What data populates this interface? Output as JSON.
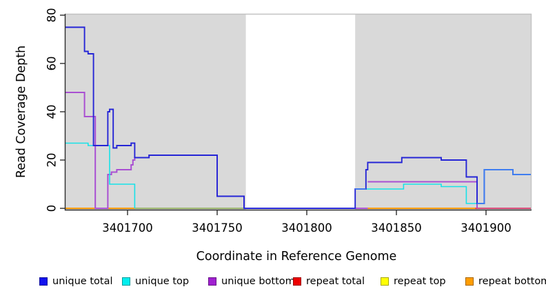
{
  "chart_data": {
    "type": "line",
    "subtype": "step-coverage-plot",
    "title": "",
    "xlabel": "Coordinate in Reference Genome",
    "ylabel": "Read Coverage Depth",
    "xlim": [
      3401665,
      3401925
    ],
    "ylim": [
      0,
      80
    ],
    "x_ticks": [
      3401700,
      3401750,
      3401800,
      3401850,
      3401900
    ],
    "y_ticks": [
      0,
      20,
      40,
      60,
      80
    ],
    "y_tick_labels_rotated": true,
    "grid": false,
    "plot_bg_color": "#d9d9d9",
    "plot_border_color": "#c2c2c2",
    "axis_color": "#2b2b2b",
    "white_region": {
      "x0": 3401766,
      "x1": 3401827,
      "color": "#ffffff"
    },
    "series": [
      {
        "name": "repeat-top",
        "label": "repeat top",
        "color": "#ffff00",
        "width": 1.6,
        "paths": [
          {
            "points": [
              [
                3401665,
                0
              ]
            ],
            "end": 3401894
          }
        ]
      },
      {
        "name": "repeat-total",
        "label": "repeat total",
        "color": "#ee0000",
        "width": 1.6,
        "paths": [
          {
            "points": [
              [
                3401665,
                0
              ]
            ],
            "end": 3401925
          }
        ]
      },
      {
        "name": "repeat-bottom",
        "label": "repeat bottom",
        "color": "#ff9d00",
        "width": 1.8,
        "paths": [
          {
            "points": [
              [
                3401665,
                0
              ]
            ],
            "end": 3401704
          },
          {
            "points": [
              [
                3401834,
                0
              ]
            ],
            "end": 3401894
          }
        ]
      },
      {
        "name": "zero-overlap-green",
        "label": "",
        "color": "#7ec87e",
        "width": 1.5,
        "note": "greenish zero line visible between unique and repeat segments",
        "paths": [
          {
            "points": [
              [
                3401704,
                0
              ]
            ],
            "end": 3401766
          }
        ]
      },
      {
        "name": "unique-bottom",
        "label": "unique bottom",
        "color": "#a94fd2",
        "width": 2.0,
        "paths": [
          {
            "points": [
              [
                3401665,
                48
              ],
              [
                3401676,
                38
              ],
              [
                3401682,
                0
              ],
              [
                3401689,
                14
              ],
              [
                3401691,
                15
              ],
              [
                3401694,
                16
              ],
              [
                3401702,
                18
              ],
              [
                3401703,
                20
              ],
              [
                3401704,
                21
              ],
              [
                3401712,
                22
              ],
              [
                3401750,
                5
              ],
              [
                3401765,
                0
              ]
            ],
            "end": 3401834
          },
          {
            "points": [
              [
                3401834,
                11
              ],
              [
                3401895,
                0
              ]
            ],
            "end": 3401895
          }
        ]
      },
      {
        "name": "unique-top",
        "label": "unique top",
        "color": "#17e2e8",
        "width": 1.6,
        "paths": [
          {
            "points": [
              [
                3401665,
                27
              ],
              [
                3401678,
                26
              ],
              [
                3401690,
                10
              ],
              [
                3401704,
                0
              ]
            ],
            "end": 3401704
          },
          {
            "points": [
              [
                3401827,
                8
              ],
              [
                3401854,
                10
              ],
              [
                3401875,
                9
              ],
              [
                3401889,
                2
              ],
              [
                3401899,
                16
              ],
              [
                3401915,
                14
              ]
            ],
            "end": 3401925
          }
        ]
      },
      {
        "name": "zero-overlap-rose",
        "label": "",
        "color": "#d23c78",
        "width": 1.6,
        "note": "rose zero line at right edge (repeat total / unique bottom overlap)",
        "paths": [
          {
            "points": [
              [
                3401895,
                0
              ]
            ],
            "end": 3401925
          }
        ]
      },
      {
        "name": "unique-total",
        "label": "unique total",
        "color": "#2525d6",
        "width": 1.9,
        "paths": [
          {
            "points": [
              [
                3401665,
                75
              ],
              [
                3401676,
                65
              ],
              [
                3401678,
                64
              ],
              [
                3401681,
                26
              ],
              [
                3401689,
                40
              ],
              [
                3401690,
                41
              ],
              [
                3401692,
                25
              ],
              [
                3401694,
                26
              ],
              [
                3401702,
                27
              ],
              [
                3401704,
                21
              ],
              [
                3401712,
                22
              ],
              [
                3401750,
                5
              ],
              [
                3401765,
                0
              ],
              [
                3401827,
                8
              ],
              [
                3401833,
                16
              ],
              [
                3401834,
                19
              ],
              [
                3401853,
                21
              ],
              [
                3401875,
                20
              ],
              [
                3401889,
                13
              ],
              [
                3401895,
                2
              ],
              [
                3401899,
                16
              ],
              [
                3401915,
                14
              ]
            ],
            "end": 3401925
          }
        ]
      },
      {
        "name": "unique-total-light-overlay",
        "label": "",
        "color": "#3f7df0",
        "width": 1.9,
        "note": "lighter blue appearance where unique total overlaps unique top",
        "paths": [
          {
            "points": [
              [
                3401827,
                8
              ]
            ],
            "end": 3401833
          },
          {
            "points": [
              [
                3401895,
                2
              ],
              [
                3401899,
                16
              ],
              [
                3401915,
                14
              ]
            ],
            "end": 3401925
          }
        ]
      }
    ],
    "legend": {
      "position": "bottom",
      "items": [
        {
          "label": "unique total",
          "color": "#1111ee"
        },
        {
          "label": "unique top",
          "color": "#00eeee"
        },
        {
          "label": "unique bottom",
          "color": "#a020d0"
        },
        {
          "label": "repeat total",
          "color": "#ee0000"
        },
        {
          "label": "repeat top",
          "color": "#ffff00"
        },
        {
          "label": "repeat bottom",
          "color": "#ff9d00"
        }
      ]
    }
  }
}
